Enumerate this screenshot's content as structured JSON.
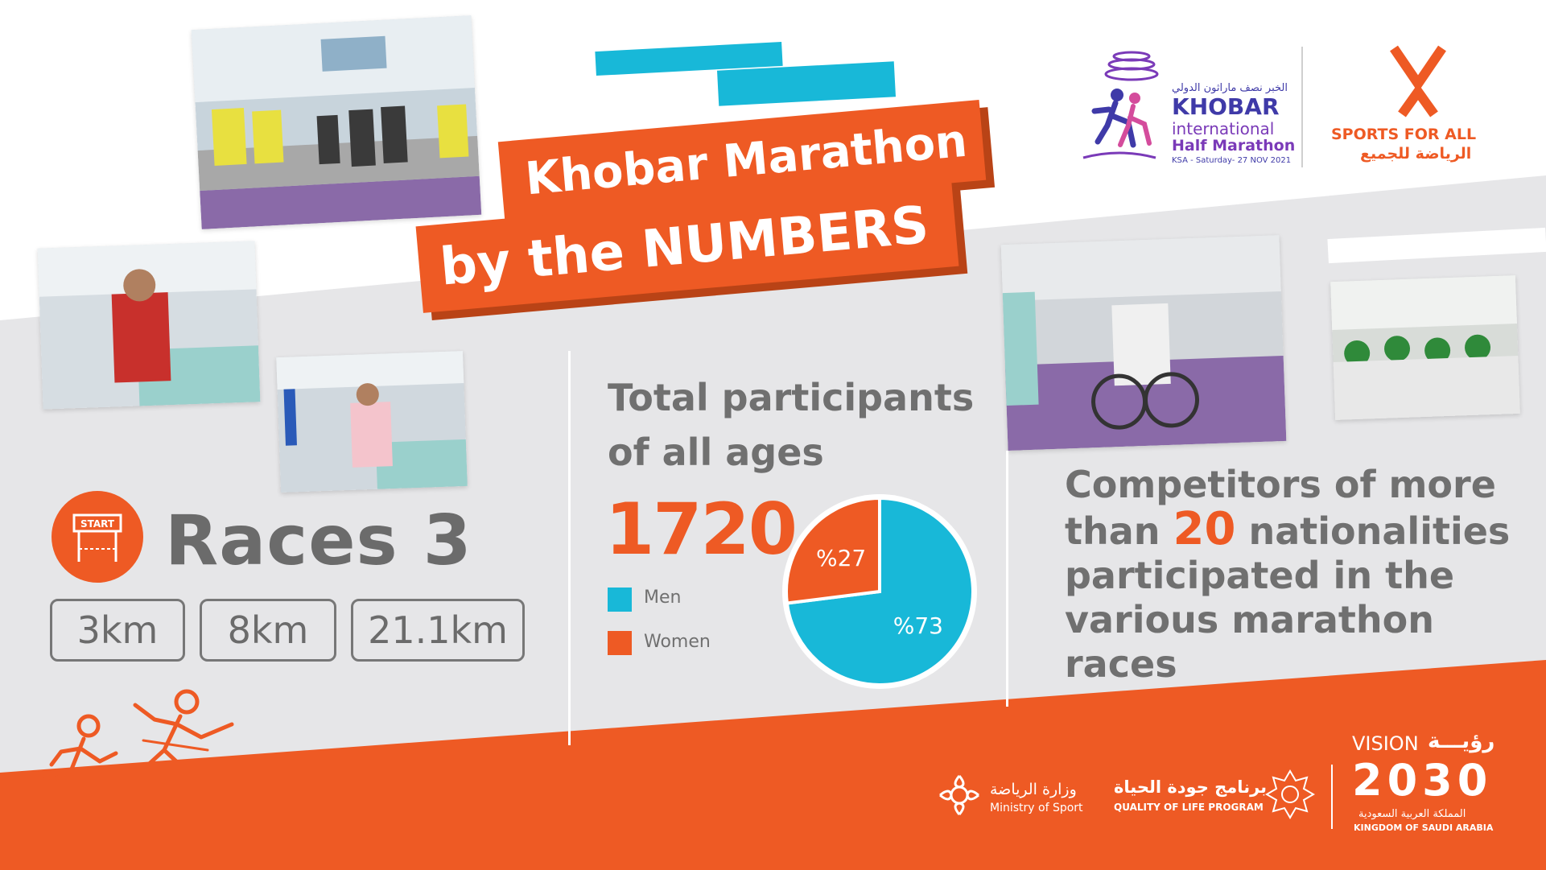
{
  "colors": {
    "orange": "#ee5a24",
    "orange_dark": "#b94316",
    "cyan": "#18b8d8",
    "gray_band": "#e6e6e8",
    "text_gray": "#6b6b6b",
    "purple": "#3f3aa8"
  },
  "title": {
    "line1": "Khobar Marathon",
    "line2": "by the NUMBERS"
  },
  "event_logo": {
    "arabic": "الخبر نصف ماراثون الدولي",
    "line1": "KHOBAR",
    "line2": "international",
    "line3": "Half Marathon",
    "date": "KSA - Saturday- 27 NOV 2021"
  },
  "sports_for_all": {
    "english": "SPORTS FOR ALL",
    "arabic": "الرياضة للجميع"
  },
  "races": {
    "icon": "start-gate-icon",
    "icon_label": "START",
    "title": "Races 3",
    "distances": [
      "3km",
      "8km",
      "21.1km"
    ]
  },
  "participants": {
    "title": "Total participants of all ages",
    "total": "1720",
    "legend": [
      {
        "label": "Men",
        "color": "#18b8d8"
      },
      {
        "label": "Women",
        "color": "#ee5a24"
      }
    ]
  },
  "chart_data": {
    "type": "pie",
    "slices": [
      {
        "label": "Men",
        "value": 73,
        "display": "%73",
        "color": "#18b8d8"
      },
      {
        "label": "Women",
        "value": 27,
        "display": "%27",
        "color": "#ee5a24"
      }
    ]
  },
  "nationalities": {
    "before": "Competitors of more than ",
    "number": "20",
    "after": " nationalities participated in the various marathon races"
  },
  "footer": {
    "ministry_arabic": "وزارة الرياضة",
    "ministry_english": "Ministry of Sport",
    "qol_arabic": "برنامج جودة الحياة",
    "qol_english": "QUALITY OF LIFE PROGRAM",
    "vision_label": "VISION",
    "vision_arabic": "رؤيـــة",
    "vision_year": "2030",
    "kingdom_arabic": "المملكة العربية السعودية",
    "kingdom_english": "KINGDOM OF SAUDI ARABIA"
  },
  "icons": [
    "runners-icon",
    "ministry-emblem-icon",
    "qol-emblem-icon",
    "vision-emblem-icon",
    "sports-for-all-mark-icon"
  ]
}
